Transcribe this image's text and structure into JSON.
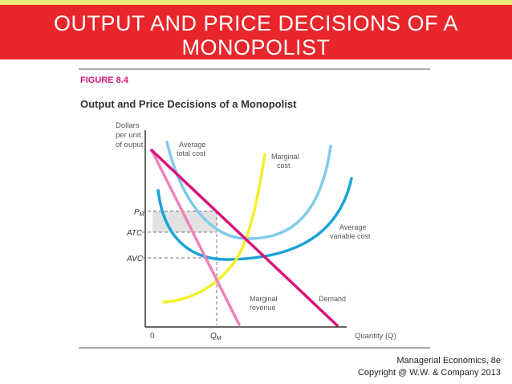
{
  "slide": {
    "title_line1": "OUTPUT AND PRICE DECISIONS OF A",
    "title_line2": "MONOPOLIST",
    "credit_line1": "Managerial Economics, 8e",
    "credit_line2": "Copyright @ W.W. & Company 2013"
  },
  "figure": {
    "label": "FIGURE 8.4",
    "title": "Output and Price Decisions of a Monopolist",
    "y_axis_label_1": "Dollars",
    "y_axis_label_2": "per unit",
    "y_axis_label_3": "of ouput",
    "x_axis_label": "Quantity (Q)",
    "origin_label": "0",
    "qm_label": "Q",
    "qm_sub": "M",
    "pm_label": "P",
    "pm_sub": "M",
    "atc_label": "ATC",
    "avc_label": "AVC",
    "curves": {
      "atc_1": "Average",
      "atc_2": "total cost",
      "mc_1": "Marginal",
      "mc_2": "cost",
      "avc_1": "Average",
      "avc_2": "variable cost",
      "mr_1": "Marginal",
      "mr_2": "revenue",
      "demand": "Demand"
    },
    "colors": {
      "demand": "#d8147a",
      "marginal_revenue": "#ee82b8",
      "marginal_cost": "#f4ef2a",
      "average_total_cost": "#7fcce8",
      "average_variable_cost": "#1aa3d9",
      "profit_area": "#e2e2e2"
    }
  }
}
